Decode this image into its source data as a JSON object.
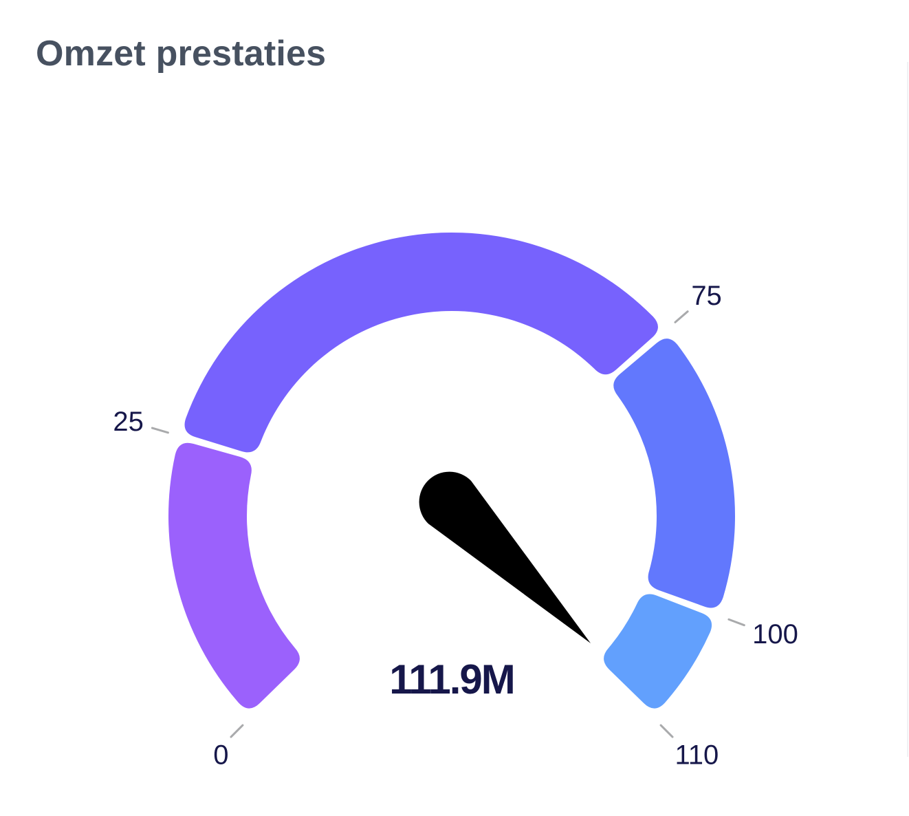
{
  "card": {
    "title": "Omzet prestaties"
  },
  "chart_data": {
    "type": "gauge",
    "title": "Omzet prestaties",
    "min": 0,
    "max": 110,
    "value_label": "111.9M",
    "needle_value": 111.9,
    "ticks": [
      {
        "value": 0,
        "label": "0"
      },
      {
        "value": 25,
        "label": "25"
      },
      {
        "value": 75,
        "label": "75"
      },
      {
        "value": 100,
        "label": "100"
      },
      {
        "value": 110,
        "label": "110"
      }
    ],
    "bands": [
      {
        "from": 0,
        "to": 25,
        "color": "#9b61fc"
      },
      {
        "from": 25,
        "to": 75,
        "color": "#7762fd"
      },
      {
        "from": 75,
        "to": 100,
        "color": "#6278fd"
      },
      {
        "from": 100,
        "to": 110,
        "color": "#62a0fd"
      }
    ],
    "needle_color": "#000000",
    "tick_color": "#a9aaac"
  }
}
